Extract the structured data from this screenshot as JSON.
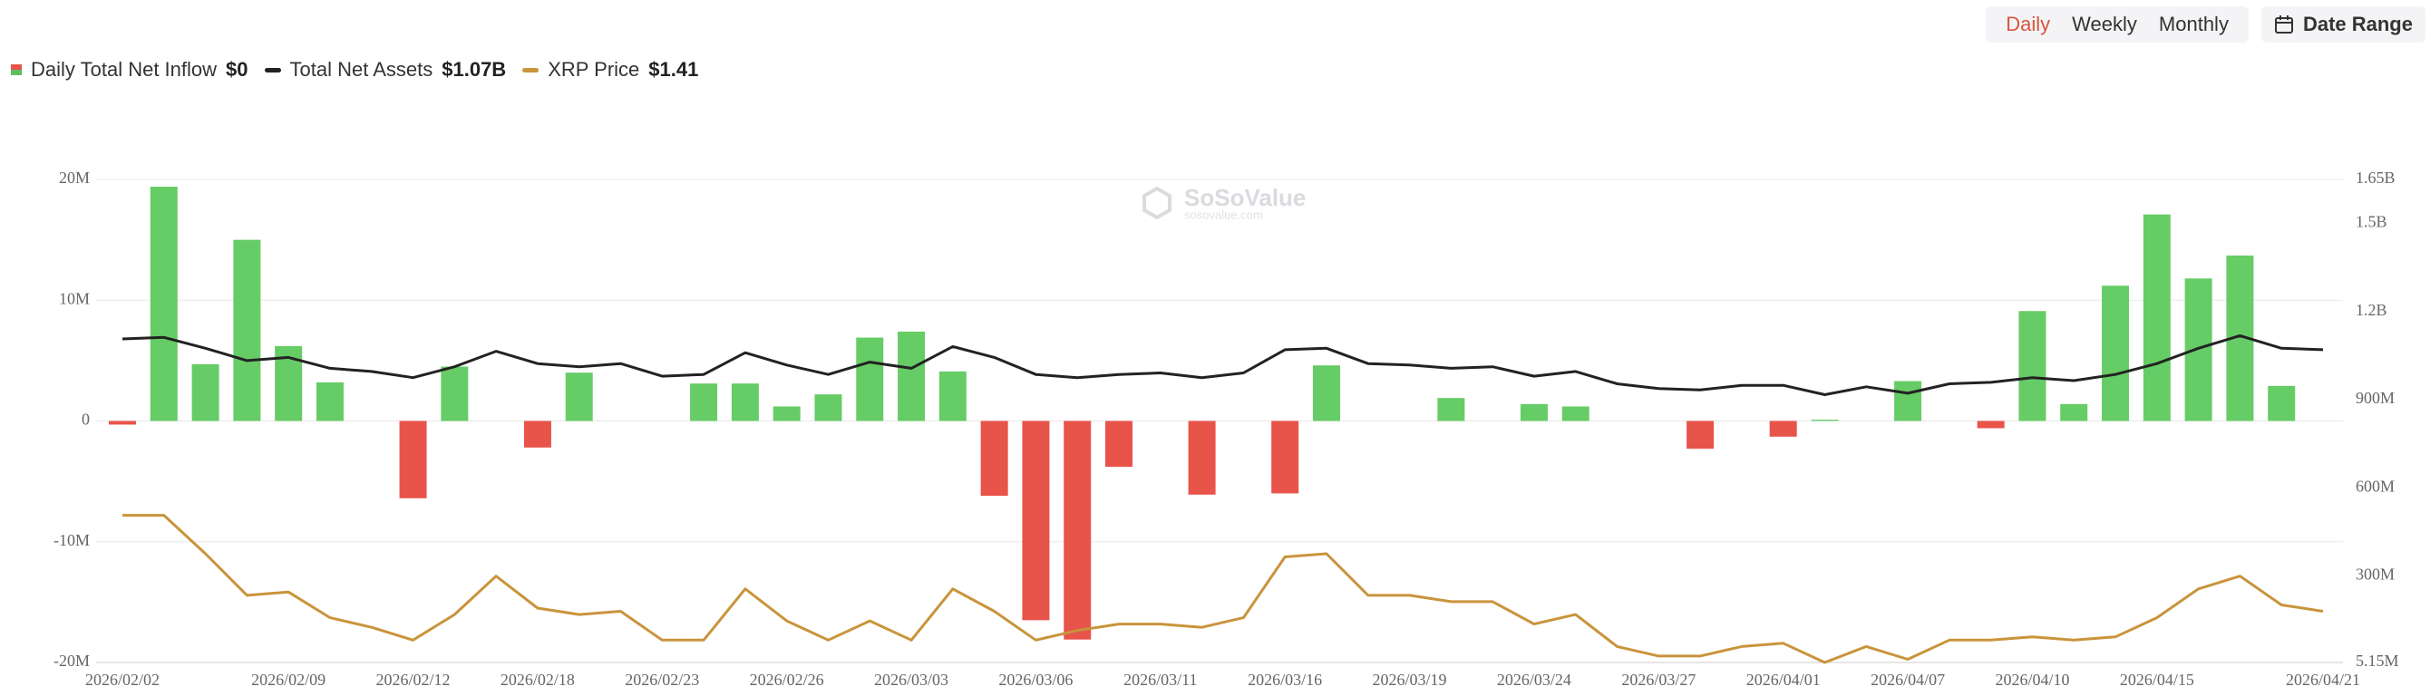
{
  "header": {
    "periods": [
      "Daily",
      "Weekly",
      "Monthly"
    ],
    "date_range": "Date Range"
  },
  "legend_values": [
    "$0",
    "$1.07B",
    "$1.41"
  ],
  "watermark": {
    "brand": "SoSoValue",
    "site": "sosovalue.com"
  },
  "chart_data": {
    "type": "bar",
    "categories": [
      "2026/02/02",
      null,
      null,
      null,
      "2026/02/09",
      null,
      null,
      "2026/02/12",
      null,
      null,
      "2026/02/18",
      null,
      null,
      "2026/02/23",
      null,
      null,
      "2026/02/26",
      null,
      null,
      "2026/03/03",
      null,
      null,
      "2026/03/06",
      null,
      null,
      "2026/03/11",
      null,
      null,
      "2026/03/16",
      null,
      null,
      "2026/03/19",
      null,
      null,
      "2026/03/24",
      null,
      null,
      "2026/03/27",
      null,
      null,
      "2026/04/01",
      null,
      null,
      "2026/04/07",
      null,
      null,
      "2026/04/10",
      null,
      null,
      "2026/04/15",
      null,
      null,
      null,
      "2026/04/21"
    ],
    "series": [
      {
        "name": "Daily Total Net Inflow",
        "type": "bar",
        "color": "#66cc66",
        "negative_color": "#e8534a",
        "values": [
          -300000,
          19400000,
          4700000,
          15000000,
          6200000,
          3200000,
          0,
          -6400000,
          4500000,
          0,
          -2200000,
          4000000,
          0,
          0,
          3100000,
          3100000,
          1200000,
          2200000,
          6900000,
          7400000,
          4100000,
          -6200000,
          -16500000,
          -18100000,
          -3800000,
          0,
          -6100000,
          0,
          -6000000,
          4600000,
          0,
          0,
          1900000,
          0,
          1400000,
          1200000,
          0,
          0,
          -2300000,
          0,
          -1300000,
          100000,
          0,
          3300000,
          0,
          -600000,
          9100000,
          1400000,
          11200000,
          17100000,
          11800000,
          13700000,
          2900000,
          0
        ]
      },
      {
        "name": "Total Net Assets",
        "type": "line",
        "axis": "y2",
        "color": "#222222",
        "values": [
          1107000000,
          1112000000,
          1075000000,
          1033000000,
          1044000000,
          1007000000,
          996000000,
          975000000,
          1012000000,
          1065000000,
          1023000000,
          1012000000,
          1023000000,
          980000000,
          986000000,
          1060000000,
          1018000000,
          986000000,
          1028000000,
          1007000000,
          1081000000,
          1044000000,
          986000000,
          975000000,
          986000000,
          991000000,
          975000000,
          991000000,
          1070000000,
          1075000000,
          1023000000,
          1018000000,
          1007000000,
          1012000000,
          980000000,
          996000000,
          954000000,
          938000000,
          933000000,
          949000000,
          949000000,
          917000000,
          944000000,
          922000000,
          954000000,
          959000000,
          975000000,
          965000000,
          986000000,
          1023000000,
          1075000000,
          1118000000,
          1075000000,
          1070000000
        ]
      },
      {
        "name": "XRP Price",
        "type": "line",
        "axis": "y3",
        "color": "#c9943c",
        "values": [
          1.71,
          1.71,
          1.59,
          1.46,
          1.47,
          1.39,
          1.36,
          1.32,
          1.4,
          1.52,
          1.42,
          1.4,
          1.41,
          1.32,
          1.32,
          1.48,
          1.38,
          1.32,
          1.38,
          1.32,
          1.48,
          1.41,
          1.32,
          1.35,
          1.37,
          1.37,
          1.36,
          1.39,
          1.58,
          1.59,
          1.46,
          1.46,
          1.44,
          1.44,
          1.37,
          1.4,
          1.3,
          1.27,
          1.27,
          1.3,
          1.31,
          1.25,
          1.3,
          1.26,
          1.32,
          1.32,
          1.33,
          1.32,
          1.33,
          1.39,
          1.48,
          1.52,
          1.43,
          1.41
        ]
      }
    ],
    "ylim": [
      -20000000,
      20000000
    ],
    "yticks": [
      {
        "value": 20000000,
        "label": "20M"
      },
      {
        "value": 10000000,
        "label": "10M"
      },
      0,
      {
        "value": -10000000,
        "label": "-10M"
      },
      {
        "value": -20000000,
        "label": "-20M"
      }
    ],
    "y2lim": [
      5150000,
      1650000000
    ],
    "y2ticks": [
      {
        "value": 1650000000,
        "label": "1.65B"
      },
      {
        "value": 1500000000,
        "label": "1.5B"
      },
      {
        "value": 1200000000,
        "label": "1.2B"
      },
      {
        "value": 900000000,
        "label": "900M"
      },
      {
        "value": 600000000,
        "label": "600M"
      },
      {
        "value": 300000000,
        "label": "300M"
      },
      {
        "value": 5150000,
        "label": "5.15M"
      }
    ],
    "y3lim": [
      1.25,
      2.76
    ],
    "grid": true
  }
}
